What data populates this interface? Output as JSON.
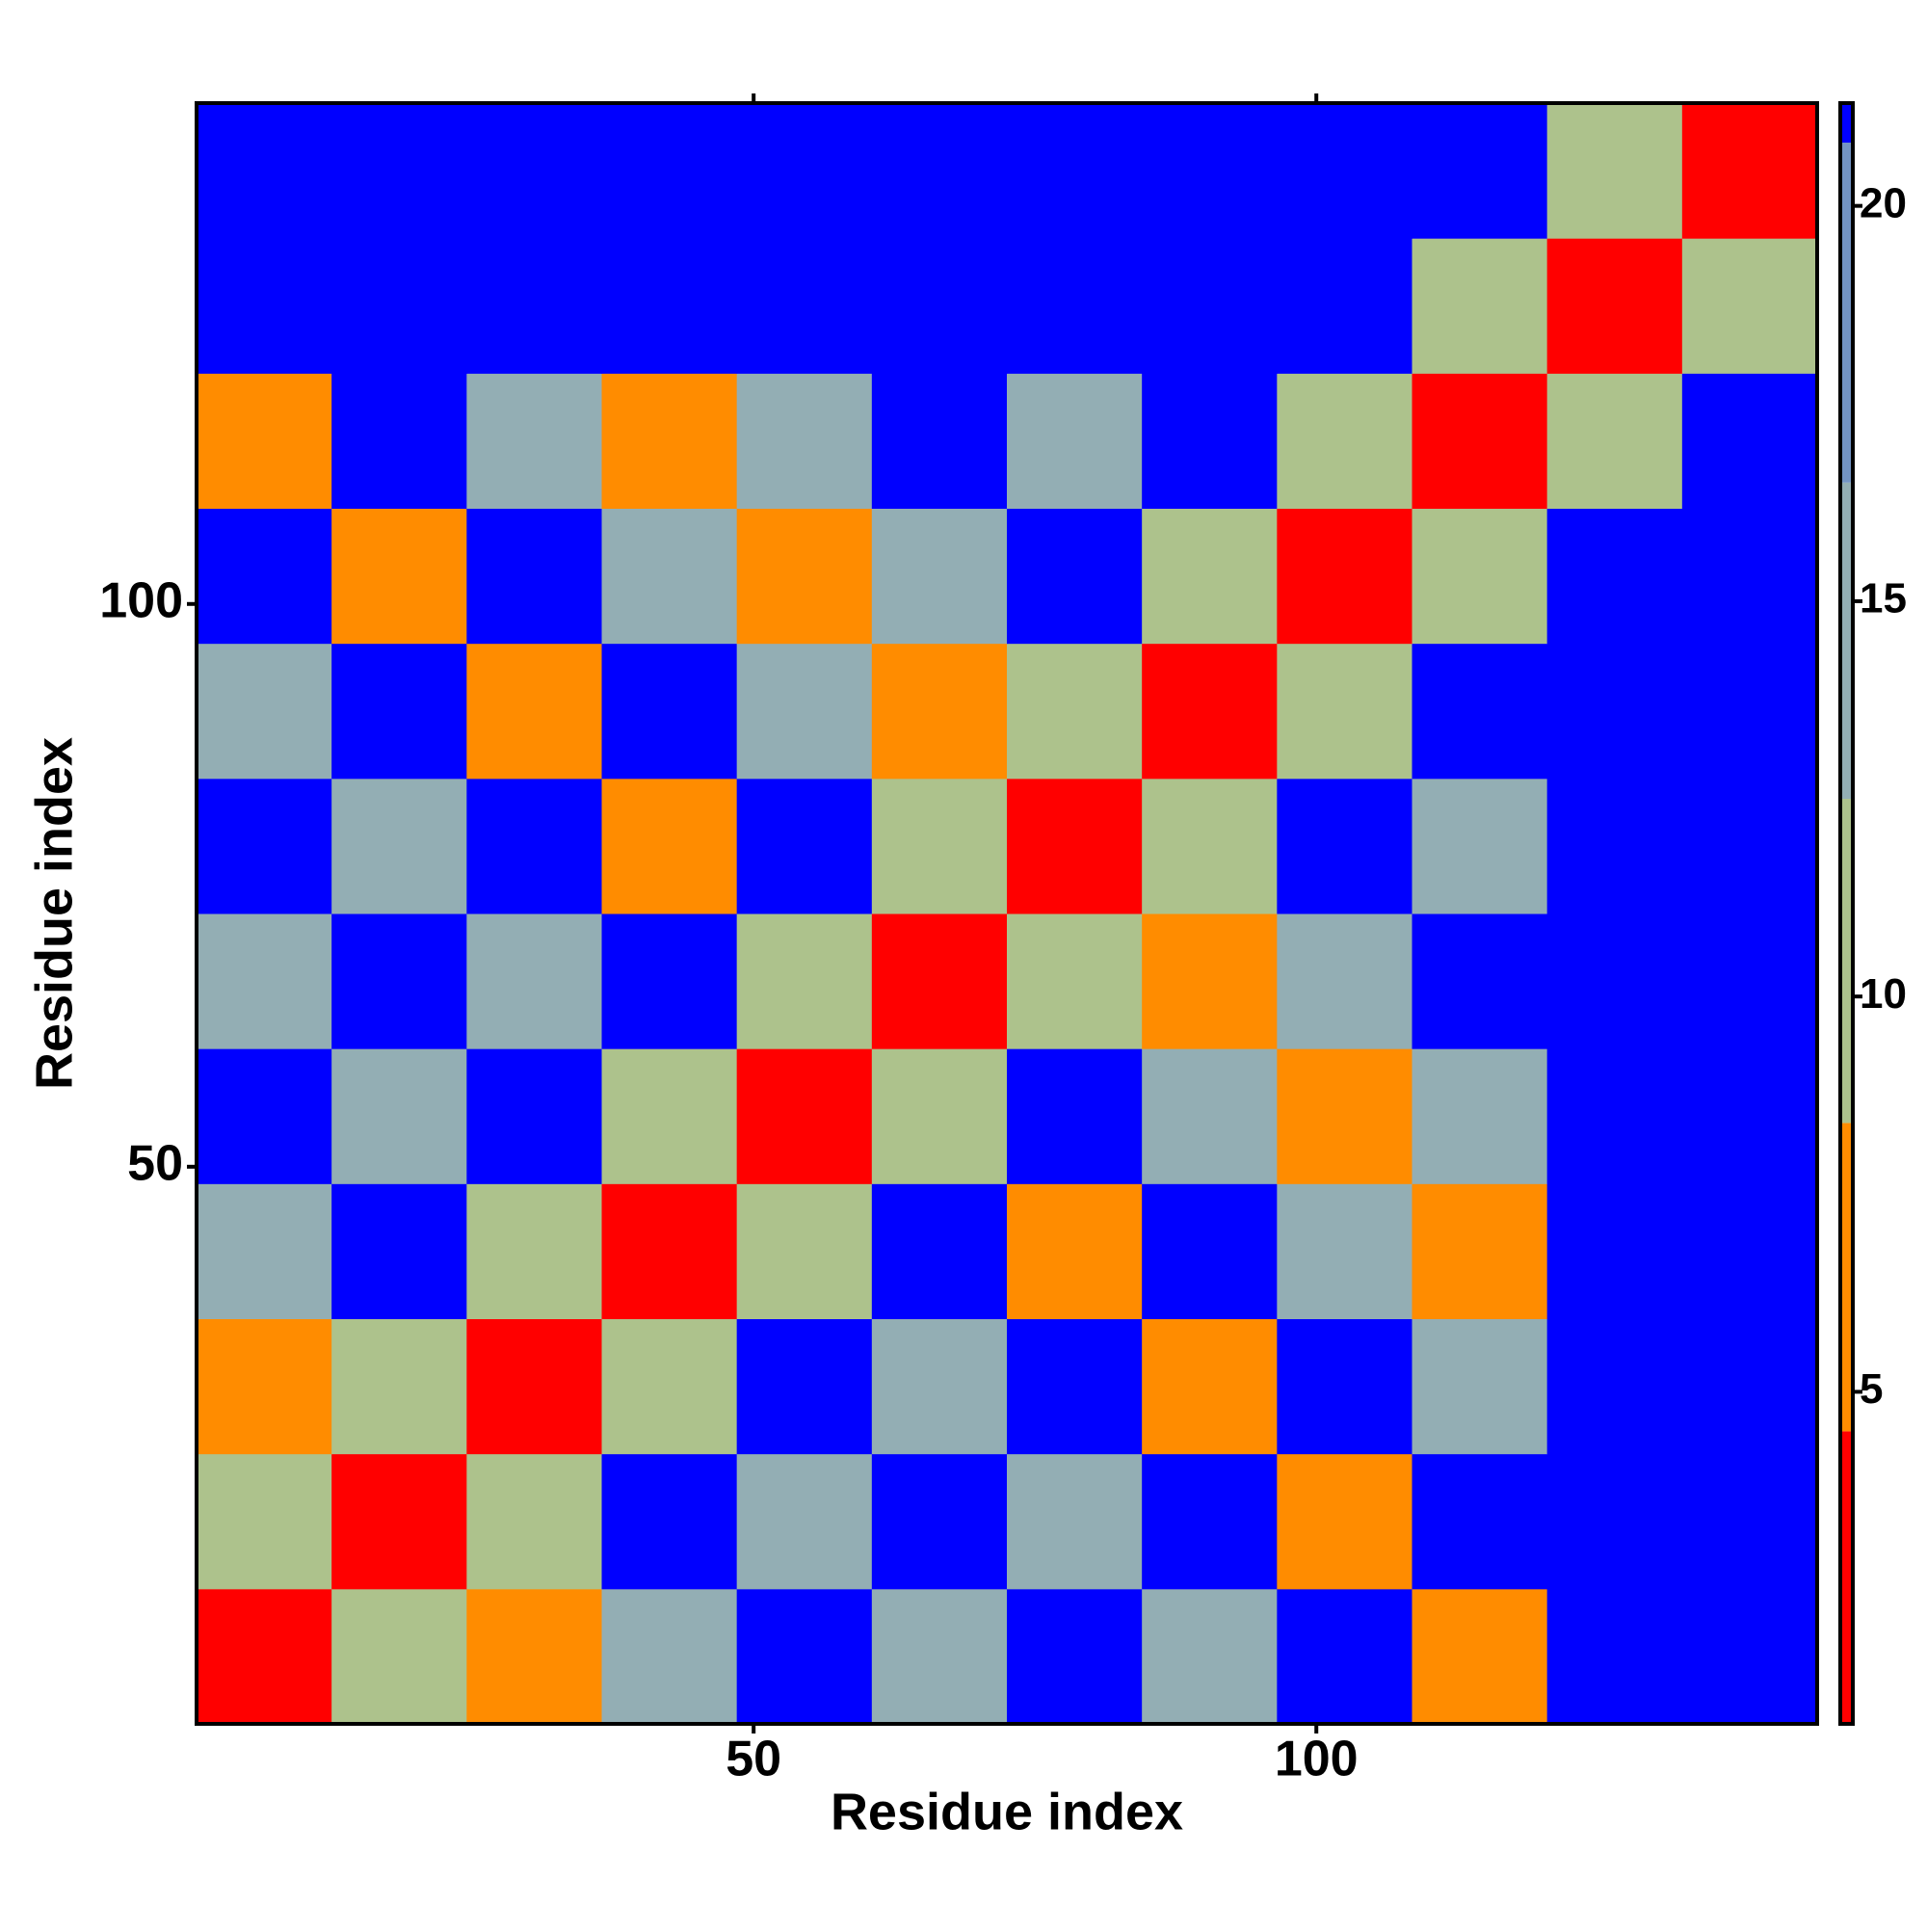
{
  "chart_data": {
    "type": "heatmap",
    "x_label": "Residue index",
    "y_label": "Residue index",
    "xlim": [
      0.5,
      144.5
    ],
    "ylim": [
      0.5,
      144.5
    ],
    "xticks": [
      50,
      100
    ],
    "yticks": [
      50,
      100
    ],
    "x_edges": [
      0.5,
      12.5,
      24.5,
      36.5,
      48.5,
      60.5,
      72.5,
      84.5,
      96.5,
      108.5,
      120.5,
      132.5,
      144.5
    ],
    "y_edges": [
      0.5,
      12.5,
      24.5,
      36.5,
      48.5,
      60.5,
      72.5,
      84.5,
      96.5,
      108.5,
      120.5,
      132.5,
      144.5
    ],
    "z": [
      [
        3.8,
        10,
        7,
        13,
        22,
        13,
        22,
        13,
        22,
        7,
        22,
        22
      ],
      [
        10,
        3.8,
        10,
        22,
        13,
        22,
        13,
        22,
        7,
        22,
        22,
        22
      ],
      [
        7,
        10,
        3.8,
        10,
        22,
        13,
        22,
        7,
        22,
        13,
        22,
        22
      ],
      [
        13,
        22,
        10,
        3.8,
        10,
        22,
        7,
        22,
        13,
        7,
        22,
        22
      ],
      [
        22,
        13,
        22,
        10,
        3.8,
        10,
        22,
        13,
        7,
        13,
        22,
        22
      ],
      [
        13,
        22,
        13,
        22,
        10,
        3.8,
        10,
        7,
        13,
        22,
        22,
        22
      ],
      [
        22,
        13,
        22,
        7,
        22,
        10,
        3.8,
        10,
        22,
        13,
        22,
        22
      ],
      [
        13,
        22,
        7,
        22,
        13,
        7,
        10,
        3.8,
        10,
        22,
        22,
        22
      ],
      [
        22,
        7,
        22,
        13,
        7,
        13,
        22,
        10,
        3.8,
        10,
        22,
        22
      ],
      [
        7,
        22,
        13,
        7,
        13,
        22,
        13,
        22,
        10,
        3.8,
        12,
        22
      ],
      [
        22,
        22,
        22,
        22,
        22,
        22,
        22,
        22,
        22,
        12,
        3.8,
        12
      ],
      [
        22,
        22,
        22,
        22,
        22,
        22,
        22,
        22,
        22,
        22,
        12,
        3.8
      ]
    ],
    "colorbar_lim": [
      0.8,
      21.3
    ],
    "colorbar_ticks": [
      5,
      10,
      15,
      20
    ],
    "color_breaks": [
      0.8,
      4.5,
      8.4,
      12.5,
      16.5,
      20.8,
      21.3
    ],
    "colors": [
      "#ff0000",
      "#ff8c00",
      "#adc28c",
      "#93aeb4",
      "#7394c4",
      "#0000ff"
    ]
  }
}
